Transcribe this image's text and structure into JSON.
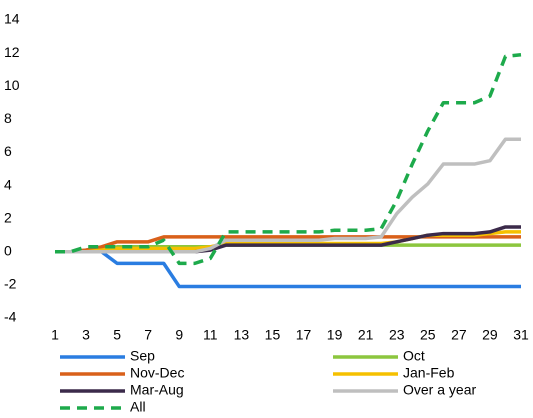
{
  "chart_data": {
    "type": "line",
    "x": [
      1,
      2,
      3,
      4,
      5,
      6,
      7,
      8,
      9,
      10,
      11,
      12,
      13,
      14,
      15,
      16,
      17,
      18,
      19,
      20,
      21,
      22,
      23,
      24,
      25,
      26,
      27,
      28,
      29,
      30,
      31
    ],
    "xlim": [
      1,
      31
    ],
    "xticks": [
      1,
      3,
      5,
      7,
      9,
      11,
      13,
      15,
      17,
      19,
      21,
      23,
      25,
      27,
      29,
      31
    ],
    "ylim": [
      -4,
      14
    ],
    "yticks": [
      -4,
      -2,
      0,
      2,
      4,
      6,
      8,
      10,
      12,
      14
    ],
    "series": [
      {
        "name": "Sep",
        "color": "#2a7de1",
        "values": [
          0,
          0,
          0,
          0,
          -0.7,
          -0.7,
          -0.7,
          -0.7,
          -2.1,
          -2.1,
          -2.1,
          -2.1,
          -2.1,
          -2.1,
          -2.1,
          -2.1,
          -2.1,
          -2.1,
          -2.1,
          -2.1,
          -2.1,
          -2.1,
          -2.1,
          -2.1,
          -2.1,
          -2.1,
          -2.1,
          -2.1,
          -2.1,
          -2.1,
          -2.1
        ]
      },
      {
        "name": "Oct",
        "color": "#8cc63e",
        "values": [
          0,
          0,
          0.1,
          0.2,
          0.3,
          0.3,
          0.3,
          0.3,
          0.3,
          0.3,
          0.3,
          0.4,
          0.4,
          0.4,
          0.4,
          0.4,
          0.4,
          0.4,
          0.4,
          0.4,
          0.4,
          0.4,
          0.4,
          0.4,
          0.4,
          0.4,
          0.4,
          0.4,
          0.4,
          0.4,
          0.4
        ]
      },
      {
        "name": "Nov-Dec",
        "color": "#d9601a",
        "values": [
          0,
          0,
          0.1,
          0.3,
          0.6,
          0.6,
          0.6,
          0.9,
          0.9,
          0.9,
          0.9,
          0.9,
          0.9,
          0.9,
          0.9,
          0.9,
          0.9,
          0.9,
          0.9,
          0.9,
          0.9,
          0.9,
          0.9,
          0.9,
          0.9,
          0.9,
          0.9,
          0.9,
          0.9,
          0.9,
          0.9
        ]
      },
      {
        "name": "Jan-Feb",
        "color": "#f5c000",
        "values": [
          0,
          0,
          0,
          0.1,
          0.2,
          0.2,
          0.2,
          0.2,
          0.2,
          0.2,
          0.3,
          0.5,
          0.5,
          0.5,
          0.5,
          0.5,
          0.5,
          0.5,
          0.5,
          0.5,
          0.5,
          0.5,
          0.6,
          0.8,
          1.0,
          1.0,
          1.0,
          1.0,
          1.1,
          1.2,
          1.2
        ]
      },
      {
        "name": "Mar-Aug",
        "color": "#3b2a4a",
        "values": [
          0,
          0,
          0,
          0,
          0,
          0,
          0,
          0,
          0,
          0,
          0.1,
          0.4,
          0.4,
          0.4,
          0.4,
          0.4,
          0.4,
          0.4,
          0.4,
          0.4,
          0.4,
          0.4,
          0.6,
          0.8,
          1.0,
          1.1,
          1.1,
          1.1,
          1.2,
          1.5,
          1.5
        ]
      },
      {
        "name": "Over a year",
        "color": "#bfbfbf",
        "values": [
          0,
          0,
          0,
          0,
          0,
          0,
          0,
          0,
          0,
          0,
          0.2,
          0.7,
          0.7,
          0.7,
          0.7,
          0.7,
          0.7,
          0.7,
          0.8,
          0.8,
          0.8,
          0.9,
          2.3,
          3.3,
          4.1,
          5.3,
          5.3,
          5.3,
          5.5,
          6.8,
          6.8
        ]
      },
      {
        "name": "All",
        "color": "#1daa4b",
        "style": "dashed",
        "values": [
          0,
          0,
          0.3,
          0.3,
          0.3,
          0.3,
          0.3,
          0.7,
          -0.7,
          -0.7,
          -0.4,
          1.2,
          1.2,
          1.2,
          1.2,
          1.2,
          1.2,
          1.2,
          1.3,
          1.3,
          1.3,
          1.4,
          3.1,
          5.3,
          7.3,
          9.0,
          9.0,
          9.0,
          9.4,
          11.8,
          11.9
        ]
      }
    ]
  }
}
